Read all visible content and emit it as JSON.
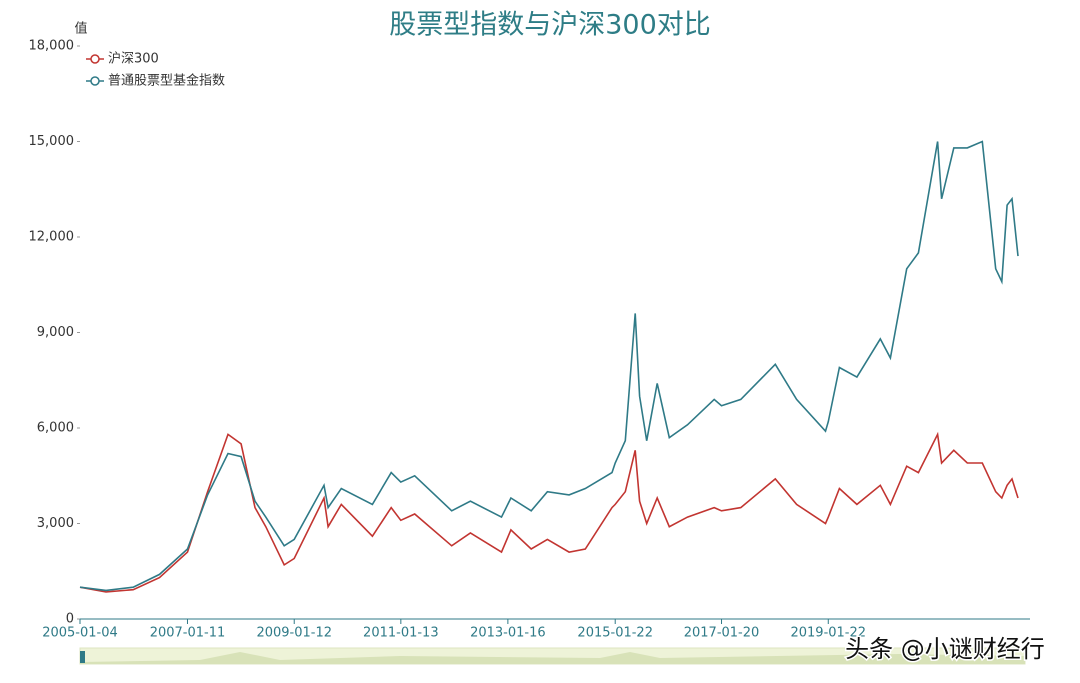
{
  "chart_data": {
    "type": "line",
    "title": "股票型指数与沪深300对比",
    "y_label": "值",
    "watermark": "头条 @小谜财经行",
    "x": [
      "2005-01-04",
      "2005-07-01",
      "2006-01-04",
      "2006-07-03",
      "2007-01-11",
      "2007-05-29",
      "2007-10-16",
      "2008-01-14",
      "2008-04-18",
      "2008-07-01",
      "2008-11-04",
      "2009-01-12",
      "2009-08-04",
      "2009-09-01",
      "2009-12-01",
      "2010-07-02",
      "2010-11-08",
      "2011-01-13",
      "2011-04-18",
      "2011-12-28",
      "2012-05-04",
      "2012-12-03",
      "2013-02-06",
      "2013-06-25",
      "2013-10-14",
      "2014-03-12",
      "2014-07-01",
      "2014-12-31",
      "2015-01-22",
      "2015-04-01",
      "2015-06-08",
      "2015-07-08",
      "2015-08-26",
      "2015-11-06",
      "2016-01-28",
      "2016-06-01",
      "2016-12-01",
      "2017-01-20",
      "2017-06-01",
      "2018-01-24",
      "2018-06-19",
      "2019-01-03",
      "2019-01-22",
      "2019-04-08",
      "2019-08-06",
      "2020-01-14",
      "2020-03-23",
      "2020-07-13",
      "2020-10-01",
      "2021-02-10",
      "2021-03-09",
      "2021-06-01",
      "2021-09-01",
      "2021-12-13",
      "2022-03-15",
      "2022-04-26",
      "2022-06-01",
      "2022-07-05",
      "2022-08-15"
    ],
    "series": [
      {
        "name": "沪深300",
        "color": "#c23531",
        "values": [
          1000,
          850,
          920,
          1300,
          2100,
          4000,
          5800,
          5500,
          3500,
          2900,
          1700,
          1900,
          3800,
          2900,
          3600,
          2600,
          3500,
          3100,
          3300,
          2300,
          2700,
          2100,
          2800,
          2200,
          2500,
          2100,
          2200,
          3500,
          3600,
          4000,
          5300,
          3700,
          3000,
          3800,
          2900,
          3200,
          3500,
          3400,
          3500,
          4400,
          3600,
          3000,
          3200,
          4100,
          3600,
          4200,
          3600,
          4800,
          4600,
          5800,
          4900,
          5300,
          4900,
          4900,
          4000,
          3800,
          4200,
          4400,
          3800
        ]
      },
      {
        "name": "普通股票型基金指数",
        "color": "#2f7a87",
        "values": [
          1000,
          900,
          1000,
          1400,
          2200,
          3900,
          5200,
          5100,
          3700,
          3200,
          2300,
          2500,
          4200,
          3500,
          4100,
          3600,
          4600,
          4300,
          4500,
          3400,
          3700,
          3200,
          3800,
          3400,
          4000,
          3900,
          4100,
          4600,
          4900,
          5600,
          9600,
          7000,
          5600,
          7400,
          5700,
          6100,
          6900,
          6700,
          6900,
          8000,
          6900,
          5900,
          6200,
          7900,
          7600,
          8800,
          8200,
          11000,
          11500,
          15000,
          13200,
          14800,
          14800,
          15000,
          11000,
          10600,
          13000,
          13200,
          11400
        ]
      }
    ],
    "xticks": [
      "2005-01-04",
      "2007-01-11",
      "2009-01-12",
      "2011-01-13",
      "2013-01-16",
      "2015-01-22",
      "2017-01-20",
      "2019-01-22"
    ],
    "ylim": [
      0,
      18000
    ],
    "yticks": [
      0,
      {
        "value": 3000,
        "label": "3,000"
      },
      {
        "value": 6000,
        "label": "6,000"
      },
      {
        "value": 9000,
        "label": "9,000"
      },
      {
        "value": 12000,
        "label": "12,000"
      },
      {
        "value": 15000,
        "label": "15,000"
      },
      {
        "value": 18000,
        "label": "18,000"
      }
    ]
  }
}
